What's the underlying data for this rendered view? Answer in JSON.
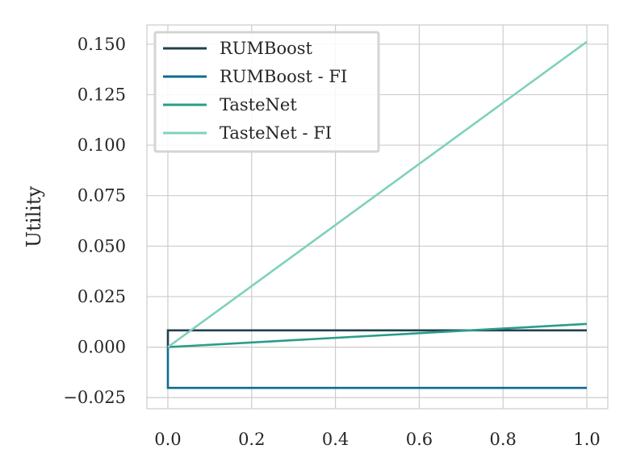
{
  "chart_data": {
    "type": "line",
    "title": "",
    "xlabel": "",
    "ylabel": "Utility",
    "xlim": [
      -0.05,
      1.05
    ],
    "ylim": [
      -0.0305,
      0.1595
    ],
    "xticks": [
      0.0,
      0.2,
      0.4,
      0.6,
      0.8,
      1.0
    ],
    "xtick_labels": [
      "0.0",
      "0.2",
      "0.4",
      "0.6",
      "0.8",
      "1.0"
    ],
    "yticks": [
      -0.025,
      0.0,
      0.025,
      0.05,
      0.075,
      0.1,
      0.125,
      0.15
    ],
    "ytick_labels": [
      "−0.025",
      "0.000",
      "0.025",
      "0.050",
      "0.075",
      "0.100",
      "0.125",
      "0.150"
    ],
    "grid": true,
    "legend_position": "top-left",
    "series": [
      {
        "name": "RUMBoost",
        "color": "#22404d",
        "x": [
          0.0,
          0.0,
          1.0
        ],
        "y": [
          0.0,
          0.0083,
          0.0083
        ]
      },
      {
        "name": "RUMBoost - FI",
        "color": "#0f6b8f",
        "x": [
          0.0,
          0.0,
          1.0
        ],
        "y": [
          0.0,
          -0.0202,
          -0.0202
        ]
      },
      {
        "name": "TasteNet",
        "color": "#2a9d88",
        "x": [
          0.0,
          1.0
        ],
        "y": [
          0.0,
          0.0115
        ]
      },
      {
        "name": "TasteNet - FI",
        "color": "#7fd1bd",
        "x": [
          0.0,
          1.0
        ],
        "y": [
          0.0,
          0.1512
        ]
      }
    ]
  }
}
